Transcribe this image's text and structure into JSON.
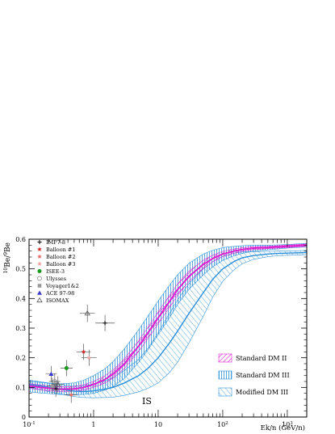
{
  "chart_data": {
    "type": "line",
    "ylabel_main": "10",
    "ylabel_sup": "Be/",
    "ylabel_sup2": "9",
    "ylabel_tail": "Be",
    "xlabel": "Ek/n (GeV/n)",
    "annotation": "IS",
    "x_scale": "log",
    "xlim": [
      0.1,
      2000
    ],
    "ylim": [
      0,
      0.6
    ],
    "y_ticks": [
      "0",
      "0.1",
      "0.2",
      "0.3",
      "0.4",
      "0.5",
      "0.6"
    ],
    "x_ticks": [
      {
        "base": "10",
        "exp": "-1",
        "value": 0.1
      },
      {
        "base": "1",
        "exp": "",
        "value": 1
      },
      {
        "base": "10",
        "exp": "",
        "value": 10
      },
      {
        "base": "10",
        "exp": "2",
        "value": 100
      },
      {
        "base": "10",
        "exp": "3",
        "value": 1000
      }
    ],
    "experiments": [
      {
        "name": "IMP7-8",
        "marker": "plus",
        "color": "#000000",
        "points": [
          [
            0.26,
            0.095
          ],
          [
            1.5,
            0.317
          ]
        ]
      },
      {
        "name": "Balloon #1",
        "marker": "star",
        "color": "#d42a2a",
        "points": [
          [
            0.7,
            0.22
          ]
        ]
      },
      {
        "name": "Balloon #2",
        "marker": "star",
        "color": "#e86a6a",
        "points": [
          [
            0.45,
            0.075
          ]
        ]
      },
      {
        "name": "Balloon #3",
        "marker": "star",
        "color": "#f0a0a0",
        "points": [
          [
            0.85,
            0.2
          ]
        ]
      },
      {
        "name": "ISEE-3",
        "marker": "circle-filled",
        "color": "#1a9a1a",
        "points": [
          [
            0.38,
            0.165
          ]
        ]
      },
      {
        "name": "Ulysses",
        "marker": "circle-open",
        "color": "#888888",
        "points": [
          [
            0.25,
            0.12
          ]
        ]
      },
      {
        "name": "Voyager1&2",
        "marker": "square",
        "color": "#999999",
        "points": [
          [
            0.23,
            0.105
          ]
        ]
      },
      {
        "name": "ACE 97-98",
        "marker": "triangle-filled",
        "color": "#3a3acc",
        "points": [
          [
            0.22,
            0.145
          ]
        ]
      },
      {
        "name": "ISOMAX",
        "marker": "triangle-open",
        "color": "#555555",
        "points": [
          [
            0.28,
            0.11
          ],
          [
            0.8,
            0.35
          ]
        ]
      }
    ],
    "series": [
      {
        "name": "Standard DM II",
        "color": "#e020d0",
        "x": [
          0.1,
          0.15,
          0.2,
          0.3,
          0.5,
          0.7,
          1,
          1.5,
          2,
          3,
          5,
          7,
          10,
          15,
          20,
          30,
          50,
          70,
          100,
          150,
          200,
          300,
          500,
          700,
          1000,
          2000
        ],
        "y": [
          0.105,
          0.1,
          0.097,
          0.094,
          0.095,
          0.1,
          0.11,
          0.127,
          0.145,
          0.18,
          0.24,
          0.285,
          0.335,
          0.39,
          0.43,
          0.475,
          0.515,
          0.535,
          0.55,
          0.56,
          0.565,
          0.57,
          0.572,
          0.574,
          0.576,
          0.58
        ],
        "band": [
          0.008,
          0.008,
          0.008,
          0.008,
          0.008,
          0.009,
          0.01,
          0.012,
          0.014,
          0.016,
          0.018,
          0.019,
          0.02,
          0.02,
          0.019,
          0.017,
          0.014,
          0.011,
          0.009,
          0.007,
          0.006,
          0.005,
          0.004,
          0.004,
          0.004,
          0.004
        ]
      },
      {
        "name": "Standard DM III",
        "color": "#2a8fd8",
        "x": [
          0.1,
          0.15,
          0.2,
          0.3,
          0.5,
          0.7,
          1,
          1.5,
          2,
          3,
          5,
          7,
          10,
          15,
          20,
          30,
          50,
          70,
          100,
          150,
          200,
          300,
          500,
          700,
          1000,
          2000
        ],
        "y": [
          0.105,
          0.1,
          0.097,
          0.094,
          0.095,
          0.1,
          0.11,
          0.127,
          0.145,
          0.18,
          0.24,
          0.285,
          0.335,
          0.39,
          0.43,
          0.475,
          0.515,
          0.535,
          0.55,
          0.56,
          0.565,
          0.57,
          0.572,
          0.574,
          0.576,
          0.58
        ],
        "band": [
          0.02,
          0.019,
          0.018,
          0.018,
          0.02,
          0.024,
          0.03,
          0.036,
          0.042,
          0.05,
          0.055,
          0.057,
          0.057,
          0.055,
          0.05,
          0.044,
          0.035,
          0.028,
          0.022,
          0.016,
          0.013,
          0.01,
          0.008,
          0.007,
          0.006,
          0.006
        ]
      },
      {
        "name": "Modified DM III",
        "color": "#2a8fd8",
        "x": [
          0.1,
          0.15,
          0.2,
          0.3,
          0.5,
          0.7,
          1,
          1.5,
          2,
          3,
          5,
          7,
          10,
          15,
          20,
          30,
          50,
          70,
          100,
          150,
          200,
          300,
          500,
          700,
          1000,
          2000
        ],
        "y": [
          0.11,
          0.105,
          0.1,
          0.094,
          0.087,
          0.086,
          0.088,
          0.094,
          0.1,
          0.115,
          0.14,
          0.165,
          0.2,
          0.25,
          0.29,
          0.35,
          0.42,
          0.465,
          0.5,
          0.525,
          0.537,
          0.545,
          0.55,
          0.552,
          0.553,
          0.555
        ],
        "band": [
          0.01,
          0.012,
          0.014,
          0.016,
          0.018,
          0.02,
          0.023,
          0.028,
          0.033,
          0.042,
          0.055,
          0.068,
          0.085,
          0.1,
          0.105,
          0.1,
          0.08,
          0.06,
          0.042,
          0.028,
          0.02,
          0.013,
          0.009,
          0.008,
          0.007,
          0.007
        ]
      }
    ],
    "legend_bottom": [
      {
        "label": "Standard DM II",
        "pattern": "magenta-hatch"
      },
      {
        "label": "Standard DM III",
        "pattern": "blue-vertical"
      },
      {
        "label": "Modified DM III",
        "pattern": "blue-hatch"
      }
    ],
    "legend_top_placement": "top-left",
    "legend_bottom_placement": "bottom-right"
  }
}
